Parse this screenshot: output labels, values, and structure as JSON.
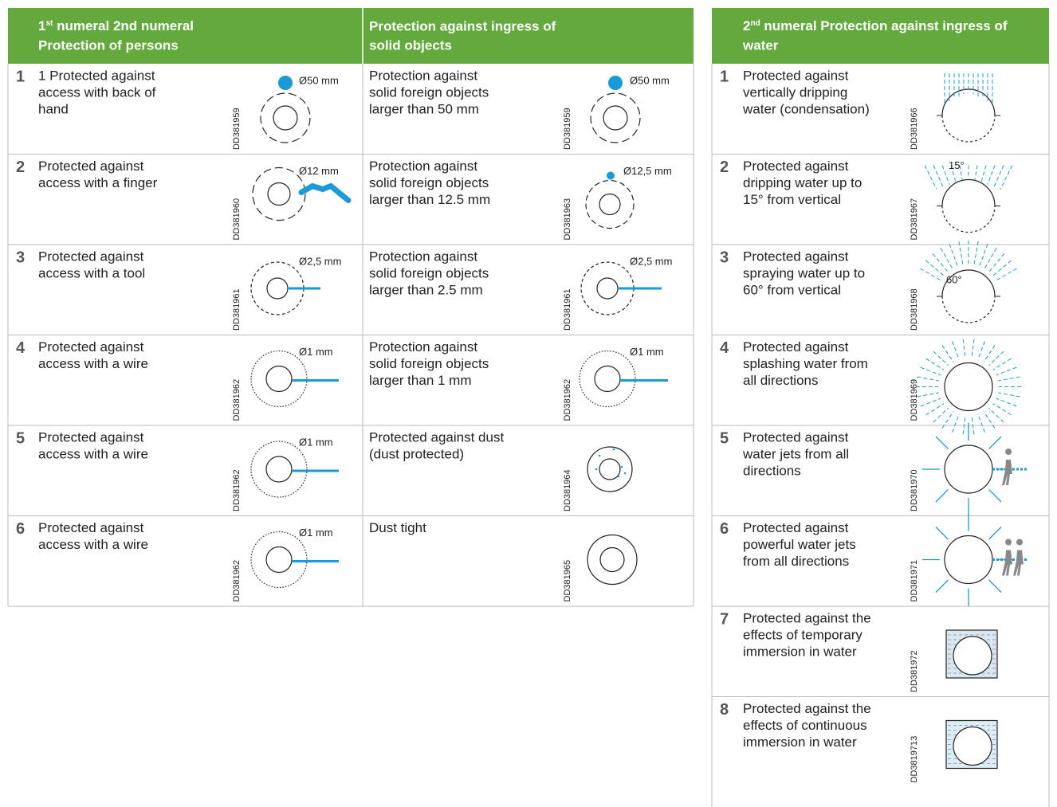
{
  "left_table": {
    "header": {
      "persons": [
        "1",
        "st",
        " numeral 2nd numeral",
        "Protection of persons"
      ],
      "solids": [
        "Protection against ingress of",
        "solid objects"
      ]
    },
    "rows": [
      {
        "number": "1",
        "persons": {
          "lines": [
            "1 Protected against",
            "access with back of",
            "hand"
          ],
          "code": "DD381959",
          "dim": "Ø50 mm"
        },
        "solids": {
          "lines": [
            "Protection against",
            "solid foreign objects",
            "larger than 50 mm"
          ],
          "code": "DD381959",
          "dim": "Ø50 mm"
        }
      },
      {
        "number": "2",
        "persons": {
          "lines": [
            "Protected against",
            "access with a finger"
          ],
          "code": "DD381960",
          "dim": "Ø12 mm"
        },
        "solids": {
          "lines": [
            "Protection against",
            "solid foreign objects",
            "larger than 12.5 mm"
          ],
          "code": "DD381963",
          "dim": "Ø12,5 mm"
        }
      },
      {
        "number": "3",
        "persons": {
          "lines": [
            "Protected against",
            "access with a tool"
          ],
          "code": "DD381961",
          "dim": "Ø2,5 mm"
        },
        "solids": {
          "lines": [
            "Protection against",
            "solid foreign objects",
            "larger than 2.5 mm"
          ],
          "code": "DD381961",
          "dim": "Ø2,5 mm"
        }
      },
      {
        "number": "4",
        "persons": {
          "lines": [
            "Protected against",
            "access with a wire"
          ],
          "code": "DD381962",
          "dim": "Ø1 mm"
        },
        "solids": {
          "lines": [
            "Protection against",
            "solid foreign objects",
            "larger than 1 mm"
          ],
          "code": "DD381962",
          "dim": "Ø1 mm"
        }
      },
      {
        "number": "5",
        "persons": {
          "lines": [
            "Protected against",
            "access with a wire"
          ],
          "code": "DD381962",
          "dim": "Ø1 mm"
        },
        "solids": {
          "lines": [
            "Protected against dust",
            "(dust protected)"
          ],
          "code": "DD381964"
        }
      },
      {
        "number": "6",
        "persons": {
          "lines": [
            "Protected against",
            "access with a wire"
          ],
          "code": "DD381962",
          "dim": "Ø1 mm"
        },
        "solids": {
          "lines": [
            "Dust tight"
          ],
          "code": "DD381965"
        }
      }
    ]
  },
  "right_table": {
    "header": [
      "2",
      "nd",
      " numeral Protection against ingress of",
      "water"
    ],
    "rows": [
      {
        "number": "1",
        "lines": [
          "Protected against",
          "vertically dripping",
          "water (condensation)"
        ],
        "code": "DD381966"
      },
      {
        "number": "2",
        "lines": [
          "Protected against",
          "dripping water up to",
          "15° from vertical"
        ],
        "code": "DD381967",
        "angle": "15°"
      },
      {
        "number": "3",
        "lines": [
          "Protected against",
          "spraying water up to",
          "60° from vertical"
        ],
        "code": "DD381968",
        "angle": "60°"
      },
      {
        "number": "4",
        "lines": [
          "Protected against",
          "splashing water from",
          "all directions"
        ],
        "code": "DD381969"
      },
      {
        "number": "5",
        "lines": [
          "Protected against",
          "water jets from all",
          "directions"
        ],
        "code": "DD381970"
      },
      {
        "number": "6",
        "lines": [
          "Protected against",
          "powerful water jets",
          "from all directions"
        ],
        "code": "DD381971"
      },
      {
        "number": "7",
        "lines": [
          "Protected against the",
          "effects of temporary",
          "immersion in water"
        ],
        "code": "DD381972"
      },
      {
        "number": "8",
        "lines": [
          "Protected against the",
          "effects of continuous",
          "immersion in water"
        ],
        "code": "DD3819713"
      }
    ]
  }
}
